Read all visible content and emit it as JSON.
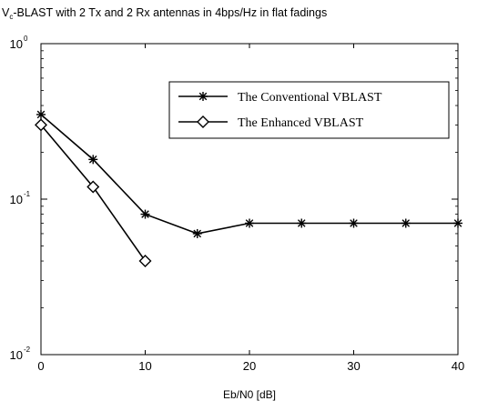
{
  "chart_data": {
    "type": "line",
    "title_main": "V",
    "title_sub": "c",
    "title_rest": "-BLAST with 2 Tx and 2 Rx antennas in 4bps/Hz in flat fadings",
    "xlabel": "Eb/N0 [dB]",
    "ylabel": "",
    "xlim": [
      0,
      40
    ],
    "ylim": [
      0.01,
      1
    ],
    "yscale": "log",
    "grid": false,
    "legend_position": "top-right",
    "x_ticks": [
      {
        "value": 0,
        "label": "0"
      },
      {
        "value": 10,
        "label": "10"
      },
      {
        "value": 20,
        "label": "20"
      },
      {
        "value": 30,
        "label": "30"
      },
      {
        "value": 40,
        "label": "40"
      }
    ],
    "y_ticks": [
      {
        "value": 1,
        "base": "10",
        "exp": "0"
      },
      {
        "value": 0.1,
        "base": "10",
        "exp": "-1"
      },
      {
        "value": 0.01,
        "base": "10",
        "exp": "-2"
      }
    ],
    "series": [
      {
        "name": "The Conventional VBLAST",
        "marker": "star",
        "color": "#000000",
        "points": [
          {
            "x": 0,
            "y": 0.35
          },
          {
            "x": 5,
            "y": 0.18
          },
          {
            "x": 10,
            "y": 0.08
          },
          {
            "x": 15,
            "y": 0.06
          },
          {
            "x": 20,
            "y": 0.07
          },
          {
            "x": 25,
            "y": 0.07
          },
          {
            "x": 30,
            "y": 0.07
          },
          {
            "x": 35,
            "y": 0.07
          },
          {
            "x": 40,
            "y": 0.07
          }
        ]
      },
      {
        "name": "The Enhanced VBLAST",
        "marker": "diamond",
        "color": "#000000",
        "points": [
          {
            "x": 0,
            "y": 0.3
          },
          {
            "x": 5,
            "y": 0.12
          },
          {
            "x": 10,
            "y": 0.04
          }
        ]
      }
    ]
  }
}
